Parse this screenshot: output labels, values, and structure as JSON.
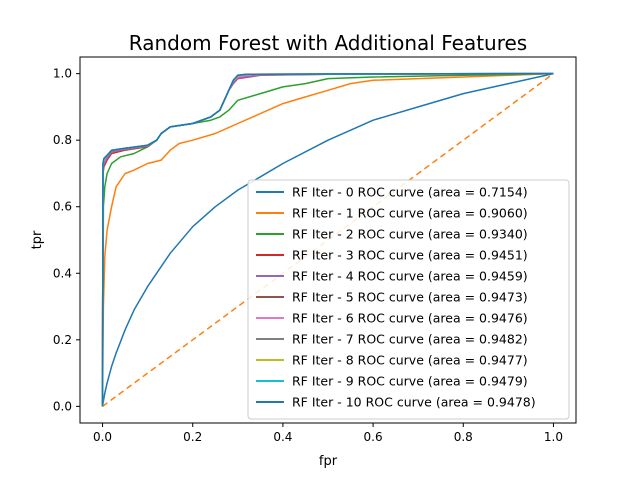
{
  "chart_data": {
    "type": "line",
    "title": "Random Forest with Additional Features",
    "xlabel": "fpr",
    "ylabel": "tpr",
    "xlim": [
      -0.05,
      1.05
    ],
    "ylim": [
      -0.05,
      1.05
    ],
    "xticks": [
      "0.0",
      "0.2",
      "0.4",
      "0.6",
      "0.8",
      "1.0"
    ],
    "yticks": [
      "0.0",
      "0.2",
      "0.4",
      "0.6",
      "0.8",
      "1.0"
    ],
    "xtick_values": [
      0,
      0.2,
      0.4,
      0.6,
      0.8,
      1.0
    ],
    "ytick_values": [
      0,
      0.2,
      0.4,
      0.6,
      0.8,
      1.0
    ],
    "grid": false,
    "legend_position": "lower-right",
    "series": [
      {
        "name": "RF Iter - 0 ROC curve (area = 0.7154)",
        "color": "#1f77b4",
        "x": [
          0,
          0.005,
          0.01,
          0.02,
          0.03,
          0.05,
          0.07,
          0.1,
          0.15,
          0.2,
          0.25,
          0.3,
          0.35,
          0.4,
          0.5,
          0.6,
          0.7,
          0.8,
          0.9,
          1.0
        ],
        "y": [
          0,
          0.04,
          0.07,
          0.12,
          0.16,
          0.23,
          0.29,
          0.36,
          0.46,
          0.54,
          0.6,
          0.65,
          0.69,
          0.73,
          0.8,
          0.86,
          0.9,
          0.94,
          0.97,
          1.0
        ]
      },
      {
        "name": "RF Iter - 1 ROC curve (area = 0.9060)",
        "color": "#ff7f0e",
        "x": [
          0,
          0.002,
          0.005,
          0.01,
          0.02,
          0.03,
          0.05,
          0.07,
          0.1,
          0.13,
          0.15,
          0.17,
          0.2,
          0.25,
          0.3,
          0.35,
          0.4,
          0.45,
          0.5,
          0.55,
          0.6,
          0.8,
          1.0
        ],
        "y": [
          0,
          0.3,
          0.45,
          0.53,
          0.6,
          0.66,
          0.7,
          0.71,
          0.73,
          0.74,
          0.77,
          0.79,
          0.8,
          0.82,
          0.85,
          0.88,
          0.91,
          0.93,
          0.95,
          0.97,
          0.98,
          0.99,
          1.0
        ]
      },
      {
        "name": "RF Iter - 2 ROC curve (area = 0.9340)",
        "color": "#2ca02c",
        "x": [
          0,
          0.002,
          0.005,
          0.01,
          0.02,
          0.04,
          0.07,
          0.1,
          0.12,
          0.13,
          0.15,
          0.2,
          0.24,
          0.26,
          0.28,
          0.3,
          0.35,
          0.4,
          0.45,
          0.5,
          0.6,
          0.8,
          1.0
        ],
        "y": [
          0,
          0.6,
          0.66,
          0.7,
          0.73,
          0.75,
          0.76,
          0.78,
          0.8,
          0.82,
          0.84,
          0.85,
          0.86,
          0.87,
          0.89,
          0.92,
          0.94,
          0.96,
          0.97,
          0.985,
          0.99,
          0.995,
          1.0
        ]
      },
      {
        "name": "RF Iter - 3 ROC curve (area = 0.9451)",
        "color": "#d62728",
        "x": [
          0,
          0.001,
          0.003,
          0.01,
          0.02,
          0.05,
          0.1,
          0.12,
          0.13,
          0.15,
          0.2,
          0.24,
          0.26,
          0.27,
          0.28,
          0.29,
          0.3,
          0.35,
          0.5,
          1.0
        ],
        "y": [
          0,
          0.7,
          0.72,
          0.74,
          0.76,
          0.77,
          0.78,
          0.8,
          0.82,
          0.84,
          0.85,
          0.87,
          0.89,
          0.92,
          0.95,
          0.97,
          0.985,
          0.995,
          0.998,
          1.0
        ]
      },
      {
        "name": "RF Iter - 4 ROC curve (area = 0.9459)",
        "color": "#9467bd",
        "x": [
          0,
          0.001,
          0.003,
          0.01,
          0.02,
          0.05,
          0.1,
          0.12,
          0.13,
          0.15,
          0.2,
          0.24,
          0.26,
          0.27,
          0.28,
          0.29,
          0.3,
          0.35,
          0.5,
          1.0
        ],
        "y": [
          0,
          0.71,
          0.73,
          0.745,
          0.765,
          0.772,
          0.782,
          0.8,
          0.82,
          0.84,
          0.85,
          0.87,
          0.89,
          0.92,
          0.95,
          0.97,
          0.987,
          0.996,
          0.998,
          1.0
        ]
      },
      {
        "name": "RF Iter - 5 ROC curve (area = 0.9473)",
        "color": "#8c564b",
        "x": [
          0,
          0.001,
          0.003,
          0.01,
          0.02,
          0.05,
          0.1,
          0.12,
          0.13,
          0.15,
          0.2,
          0.24,
          0.26,
          0.27,
          0.28,
          0.29,
          0.3,
          0.33,
          0.5,
          1.0
        ],
        "y": [
          0,
          0.72,
          0.74,
          0.75,
          0.768,
          0.774,
          0.783,
          0.8,
          0.82,
          0.84,
          0.85,
          0.87,
          0.89,
          0.92,
          0.95,
          0.975,
          0.99,
          0.997,
          0.999,
          1.0
        ]
      },
      {
        "name": "RF Iter - 6 ROC curve (area = 0.9476)",
        "color": "#e377c2",
        "x": [
          0,
          0.001,
          0.003,
          0.01,
          0.02,
          0.05,
          0.1,
          0.12,
          0.13,
          0.15,
          0.2,
          0.24,
          0.26,
          0.27,
          0.28,
          0.29,
          0.3,
          0.33,
          0.5,
          1.0
        ],
        "y": [
          0,
          0.72,
          0.74,
          0.752,
          0.769,
          0.775,
          0.784,
          0.8,
          0.82,
          0.84,
          0.85,
          0.87,
          0.89,
          0.92,
          0.95,
          0.977,
          0.99,
          0.997,
          0.999,
          1.0
        ]
      },
      {
        "name": "RF Iter - 7 ROC curve (area = 0.9482)",
        "color": "#7f7f7f",
        "x": [
          0,
          0.001,
          0.003,
          0.01,
          0.02,
          0.05,
          0.1,
          0.12,
          0.13,
          0.15,
          0.2,
          0.24,
          0.26,
          0.27,
          0.28,
          0.29,
          0.3,
          0.32,
          0.5,
          1.0
        ],
        "y": [
          0,
          0.73,
          0.745,
          0.755,
          0.77,
          0.776,
          0.785,
          0.8,
          0.82,
          0.84,
          0.85,
          0.87,
          0.89,
          0.92,
          0.95,
          0.98,
          0.995,
          0.998,
          0.999,
          1.0
        ]
      },
      {
        "name": "RF Iter - 8 ROC curve (area = 0.9477)",
        "color": "#bcbd22",
        "x": [
          0,
          0.001,
          0.003,
          0.01,
          0.02,
          0.05,
          0.1,
          0.12,
          0.13,
          0.15,
          0.2,
          0.24,
          0.26,
          0.27,
          0.28,
          0.29,
          0.3,
          0.32,
          0.5,
          1.0
        ],
        "y": [
          0,
          0.725,
          0.742,
          0.753,
          0.769,
          0.775,
          0.784,
          0.8,
          0.82,
          0.84,
          0.85,
          0.87,
          0.89,
          0.92,
          0.95,
          0.978,
          0.994,
          0.998,
          0.999,
          1.0
        ]
      },
      {
        "name": "RF Iter - 9 ROC curve (area = 0.9479)",
        "color": "#17becf",
        "x": [
          0,
          0.001,
          0.003,
          0.01,
          0.02,
          0.05,
          0.1,
          0.12,
          0.13,
          0.15,
          0.2,
          0.24,
          0.26,
          0.27,
          0.28,
          0.29,
          0.3,
          0.32,
          0.5,
          1.0
        ],
        "y": [
          0,
          0.728,
          0.744,
          0.754,
          0.77,
          0.776,
          0.785,
          0.8,
          0.82,
          0.84,
          0.85,
          0.87,
          0.89,
          0.92,
          0.95,
          0.98,
          0.995,
          0.998,
          0.999,
          1.0
        ]
      },
      {
        "name": "RF Iter - 10 ROC curve (area = 0.9478)",
        "color": "#1f77b4",
        "x": [
          0,
          0.001,
          0.003,
          0.01,
          0.02,
          0.05,
          0.1,
          0.12,
          0.13,
          0.15,
          0.2,
          0.24,
          0.26,
          0.27,
          0.28,
          0.29,
          0.3,
          0.32,
          0.5,
          1.0
        ],
        "y": [
          0,
          0.73,
          0.745,
          0.755,
          0.77,
          0.776,
          0.785,
          0.8,
          0.82,
          0.84,
          0.85,
          0.87,
          0.89,
          0.92,
          0.95,
          0.98,
          0.995,
          0.998,
          0.999,
          1.0
        ]
      }
    ],
    "reference_line": {
      "x": [
        0,
        1
      ],
      "y": [
        0,
        1
      ],
      "color": "#ff7f0e",
      "style": "dashed"
    }
  }
}
